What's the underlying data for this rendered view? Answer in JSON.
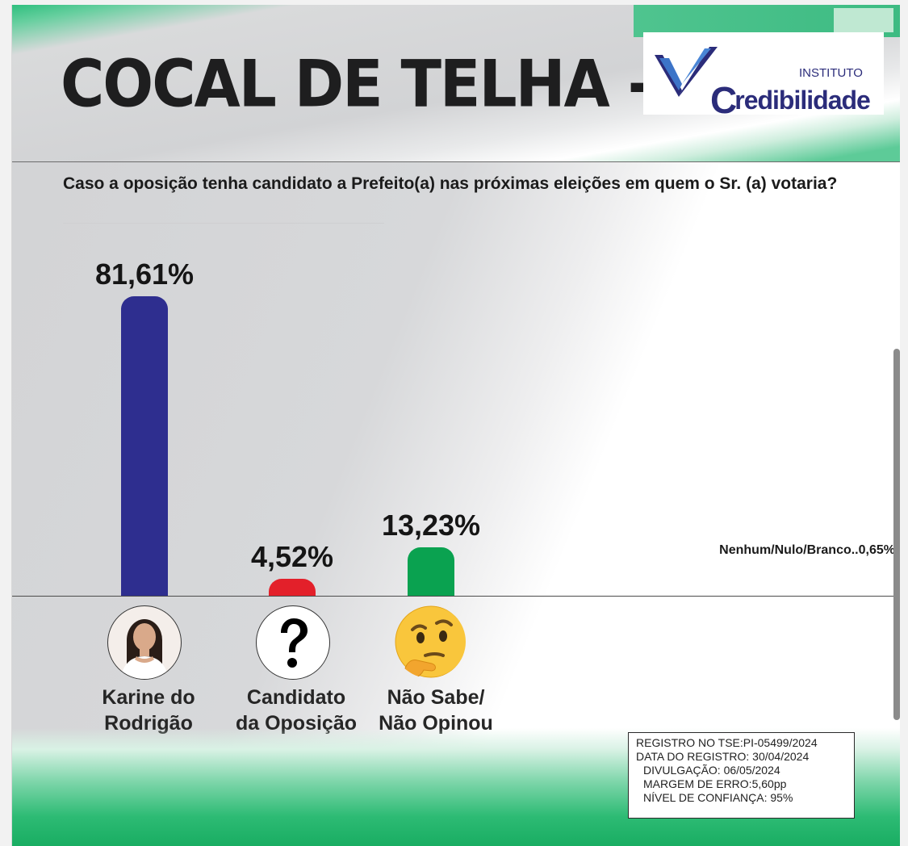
{
  "header": {
    "title": "COCAL DE TELHA - PI",
    "logo": {
      "small": "INSTITUTO",
      "big_initial": "C",
      "big_rest": "redibilidade"
    }
  },
  "question": "Caso a oposição tenha candidato a Prefeito(a) nas próximas eleições em quem o Sr. (a) votaria?",
  "chart_data": {
    "type": "bar",
    "categories": [
      "Karine do Rodrigão",
      "Candidato da Oposição",
      "Não Sabe/ Não Opinou"
    ],
    "values": [
      81.61,
      4.52,
      13.23
    ],
    "value_labels": [
      "81,61%",
      "4,52%",
      "13,23%"
    ],
    "colors": [
      "#2e2e8f",
      "#e3202a",
      "#0aa250"
    ],
    "ylim": [
      0,
      100
    ],
    "title": "",
    "xlabel": "",
    "ylabel": "",
    "grid": false,
    "legend": "none"
  },
  "labels": {
    "cat1_line1": "Karine do",
    "cat1_line2": "Rodrigão",
    "cat2_line1": "Candidato",
    "cat2_line2": "da Oposição",
    "cat3_line1": "Não Sabe/",
    "cat3_line2": "Não Opinou",
    "other": "Nenhum/Nulo/Branco..0,65%"
  },
  "icons": [
    "person-photo-icon",
    "question-mark-icon",
    "thinking-face-icon"
  ],
  "registry": {
    "line1": "REGISTRO NO TSE:PI-05499/2024",
    "line2": "DATA DO REGISTRO: 30/04/2024",
    "line3": "DIVULGAÇÃO: 06/05/2024",
    "line4": "MARGEM DE ERRO:5,60pp",
    "line5": "NÍVEL DE CONFIANÇA: 95%"
  }
}
